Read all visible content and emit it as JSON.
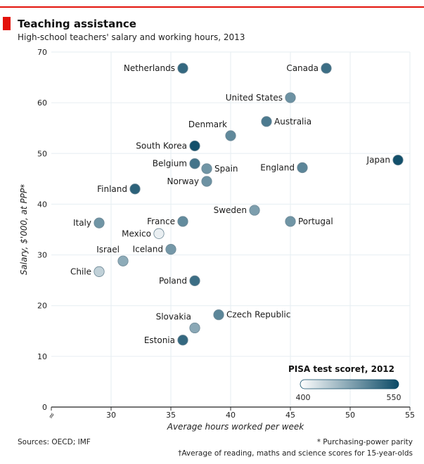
{
  "header": {
    "title": "Teaching assistance",
    "subtitle": "High-school teachers' salary and working hours, 2013"
  },
  "footer": {
    "sources": "Sources: OECD; IMF",
    "note1": "* Purchasing-power parity",
    "note2": "†Average of reading, maths and science scores for 15-year-olds"
  },
  "colors": {
    "brand_red": "#e3120b",
    "score_low": "#ffffff",
    "score_high": "#0b4a66"
  },
  "chart_data": {
    "type": "scatter",
    "title": "Teaching assistance",
    "subtitle": "High-school teachers' salary and working hours, 2013",
    "xlabel": "Average hours worked per week",
    "ylabel": "Salary, $'000, at PPP*",
    "xlim": [
      25,
      55
    ],
    "ylim": [
      0,
      70
    ],
    "x_ticks": [
      30,
      35,
      40,
      45,
      50,
      55
    ],
    "y_ticks": [
      0,
      10,
      20,
      30,
      40,
      50,
      60,
      70
    ],
    "axis_break_symbol": "≈",
    "grid": true,
    "color_legend": {
      "title": "PISA test score†, 2012",
      "min": 400,
      "max": 550,
      "tick_labels": [
        "400",
        "550"
      ],
      "placement": "bottom-right"
    },
    "points": [
      {
        "label": "Netherlands",
        "x": 36,
        "y": 66.8,
        "score": 525,
        "label_side": "left"
      },
      {
        "label": "Canada",
        "x": 48,
        "y": 66.8,
        "score": 520,
        "label_side": "left"
      },
      {
        "label": "United States",
        "x": 45,
        "y": 61,
        "score": 490,
        "label_side": "left"
      },
      {
        "label": "Australia",
        "x": 43,
        "y": 56.3,
        "score": 510,
        "label_side": "right"
      },
      {
        "label": "Denmark",
        "x": 40,
        "y": 53.5,
        "score": 498,
        "label_side": "above-left"
      },
      {
        "label": "South Korea",
        "x": 37,
        "y": 51.5,
        "score": 545,
        "label_side": "left"
      },
      {
        "label": "Japan",
        "x": 54,
        "y": 48.7,
        "score": 545,
        "label_side": "left"
      },
      {
        "label": "Belgium",
        "x": 37,
        "y": 48,
        "score": 515,
        "label_side": "left"
      },
      {
        "label": "Spain",
        "x": 38,
        "y": 47,
        "score": 488,
        "label_side": "right"
      },
      {
        "label": "England",
        "x": 46,
        "y": 47.2,
        "score": 500,
        "label_side": "left"
      },
      {
        "label": "Norway",
        "x": 38,
        "y": 44.5,
        "score": 490,
        "label_side": "left"
      },
      {
        "label": "Finland",
        "x": 32,
        "y": 43,
        "score": 530,
        "label_side": "left"
      },
      {
        "label": "Sweden",
        "x": 42,
        "y": 38.8,
        "score": 480,
        "label_side": "left"
      },
      {
        "label": "Italy",
        "x": 29,
        "y": 36.3,
        "score": 488,
        "label_side": "left"
      },
      {
        "label": "France",
        "x": 36,
        "y": 36.6,
        "score": 496,
        "label_side": "left"
      },
      {
        "label": "Portugal",
        "x": 45,
        "y": 36.6,
        "score": 488,
        "label_side": "right"
      },
      {
        "label": "Mexico",
        "x": 34,
        "y": 34.2,
        "score": 413,
        "label_side": "left"
      },
      {
        "label": "Iceland",
        "x": 35,
        "y": 31.1,
        "score": 485,
        "label_side": "left"
      },
      {
        "label": "Israel",
        "x": 31,
        "y": 28.8,
        "score": 470,
        "label_side": "above-left"
      },
      {
        "label": "Chile",
        "x": 29,
        "y": 26.7,
        "score": 438,
        "label_side": "left"
      },
      {
        "label": "Poland",
        "x": 37,
        "y": 24.9,
        "score": 520,
        "label_side": "left"
      },
      {
        "label": "Czech Republic",
        "x": 39,
        "y": 18.2,
        "score": 500,
        "label_side": "right"
      },
      {
        "label": "Slovakia",
        "x": 37,
        "y": 15.6,
        "score": 472,
        "label_side": "above-left"
      },
      {
        "label": "Estonia",
        "x": 36,
        "y": 13.2,
        "score": 525,
        "label_side": "left"
      }
    ]
  }
}
